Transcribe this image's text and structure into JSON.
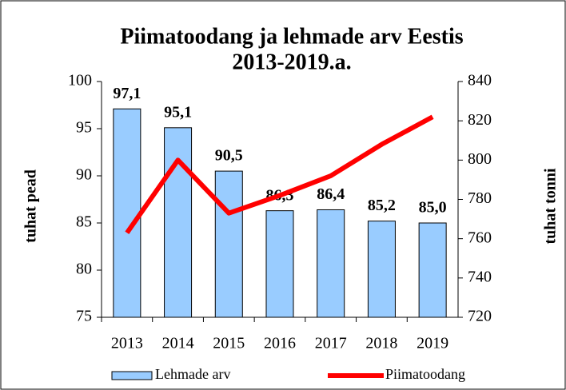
{
  "chart_data": {
    "type": "bar_line",
    "title": [
      "Piimatoodang  ja lehmade arv Eestis",
      "2013-2019.a."
    ],
    "y_label": "tuhat pead",
    "y2_label": "tuhat tonni",
    "categories": [
      "2013",
      "2014",
      "2015",
      "2016",
      "2017",
      "2018",
      "2019"
    ],
    "series": [
      {
        "name": "Lehmade arv",
        "type": "bar",
        "color": "#99ccff",
        "values": [
          97.1,
          95.1,
          90.5,
          86.3,
          86.4,
          85.2,
          85.0
        ],
        "value_labels": [
          "97,1",
          "95,1",
          "90,5",
          "86,3",
          "86,4",
          "85,2",
          "85,0"
        ]
      },
      {
        "name": "Piimatoodang",
        "type": "line",
        "axis": "y2",
        "color": "#ff0000",
        "values": [
          763,
          800,
          773,
          782,
          792,
          808,
          822
        ]
      }
    ],
    "ylim": [
      75,
      100
    ],
    "yticks": [
      75,
      80,
      85,
      90,
      95,
      100
    ],
    "y2lim": [
      720,
      840
    ],
    "y2ticks": [
      720,
      740,
      760,
      780,
      800,
      820,
      840
    ]
  }
}
